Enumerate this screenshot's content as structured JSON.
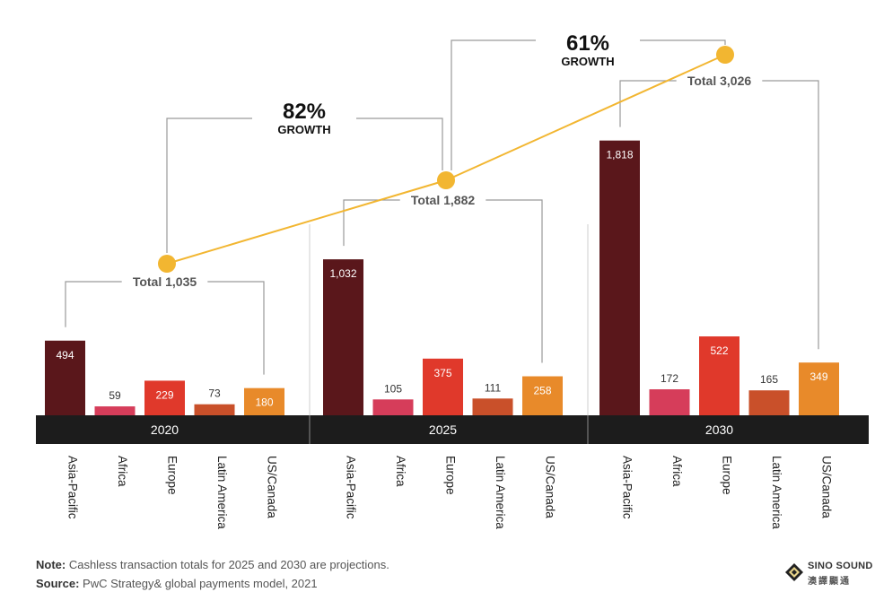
{
  "chart_data": {
    "type": "bar",
    "groups": [
      "2020",
      "2025",
      "2030"
    ],
    "categories": [
      "Asia-Pacific",
      "Africa",
      "Europe",
      "Latin America",
      "US/Canada"
    ],
    "series": [
      {
        "group": "2020",
        "values": [
          494,
          59,
          229,
          73,
          180
        ]
      },
      {
        "group": "2025",
        "values": [
          1032,
          105,
          375,
          111,
          258
        ]
      },
      {
        "group": "2030",
        "values": [
          1818,
          172,
          522,
          165,
          349
        ]
      }
    ],
    "value_labels": [
      [
        "494",
        "59",
        "229",
        "73",
        "180"
      ],
      [
        "1,032",
        "105",
        "375",
        "111",
        "258"
      ],
      [
        "1,818",
        "172",
        "522",
        "165",
        "349"
      ]
    ],
    "totals": [
      {
        "group": "2020",
        "value": 1035,
        "label": "Total 1,035"
      },
      {
        "group": "2025",
        "value": 1882,
        "label": "Total 1,882"
      },
      {
        "group": "2030",
        "value": 3026,
        "label": "Total 3,026"
      }
    ],
    "growth": [
      {
        "from": "2020",
        "to": "2025",
        "pct": "82%",
        "label": "GROWTH"
      },
      {
        "from": "2025",
        "to": "2030",
        "pct": "61%",
        "label": "GROWTH"
      }
    ],
    "colors": {
      "Asia-Pacific": "#5a171b",
      "Africa": "#d63d5a",
      "Europe": "#e0392b",
      "Latin America": "#c9502a",
      "US/Canada": "#e88a2a",
      "trend_line": "#f2b631",
      "year_band": "#1c1c1c",
      "bracket": "#9a9a9a"
    },
    "title": "",
    "xlabel": "",
    "ylabel": ""
  },
  "notes": {
    "note_label": "Note:",
    "note_text": " Cashless transaction totals for 2025 and 2030 are projections.",
    "source_label": "Source:",
    "source_text": " PwC Strategy& global payments model, 2021"
  },
  "logo": {
    "line1": "SINO SOUND",
    "line2": "澳譯顯通"
  }
}
